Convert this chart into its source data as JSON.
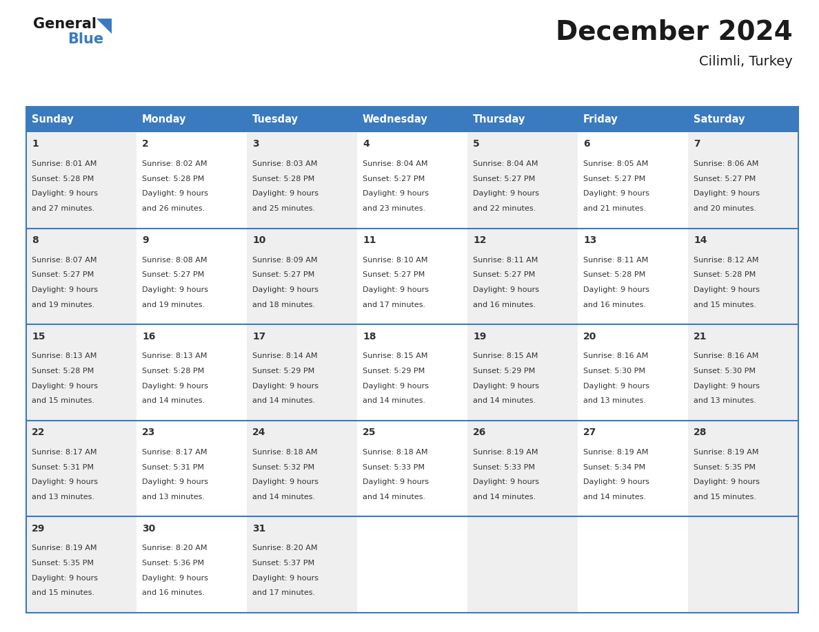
{
  "title": "December 2024",
  "subtitle": "Cilimli, Turkey",
  "header_color": "#3a7abf",
  "header_text_color": "#ffffff",
  "weekdays": [
    "Sunday",
    "Monday",
    "Tuesday",
    "Wednesday",
    "Thursday",
    "Friday",
    "Saturday"
  ],
  "bg_color_odd": "#efefef",
  "bg_color_even": "#ffffff",
  "border_color": "#3a7abf",
  "days": [
    {
      "day": 1,
      "col": 0,
      "row": 0,
      "sunrise": "8:01 AM",
      "sunset": "5:28 PM",
      "daylight": "9 hours and 27 minutes."
    },
    {
      "day": 2,
      "col": 1,
      "row": 0,
      "sunrise": "8:02 AM",
      "sunset": "5:28 PM",
      "daylight": "9 hours and 26 minutes."
    },
    {
      "day": 3,
      "col": 2,
      "row": 0,
      "sunrise": "8:03 AM",
      "sunset": "5:28 PM",
      "daylight": "9 hours and 25 minutes."
    },
    {
      "day": 4,
      "col": 3,
      "row": 0,
      "sunrise": "8:04 AM",
      "sunset": "5:27 PM",
      "daylight": "9 hours and 23 minutes."
    },
    {
      "day": 5,
      "col": 4,
      "row": 0,
      "sunrise": "8:04 AM",
      "sunset": "5:27 PM",
      "daylight": "9 hours and 22 minutes."
    },
    {
      "day": 6,
      "col": 5,
      "row": 0,
      "sunrise": "8:05 AM",
      "sunset": "5:27 PM",
      "daylight": "9 hours and 21 minutes."
    },
    {
      "day": 7,
      "col": 6,
      "row": 0,
      "sunrise": "8:06 AM",
      "sunset": "5:27 PM",
      "daylight": "9 hours and 20 minutes."
    },
    {
      "day": 8,
      "col": 0,
      "row": 1,
      "sunrise": "8:07 AM",
      "sunset": "5:27 PM",
      "daylight": "9 hours and 19 minutes."
    },
    {
      "day": 9,
      "col": 1,
      "row": 1,
      "sunrise": "8:08 AM",
      "sunset": "5:27 PM",
      "daylight": "9 hours and 19 minutes."
    },
    {
      "day": 10,
      "col": 2,
      "row": 1,
      "sunrise": "8:09 AM",
      "sunset": "5:27 PM",
      "daylight": "9 hours and 18 minutes."
    },
    {
      "day": 11,
      "col": 3,
      "row": 1,
      "sunrise": "8:10 AM",
      "sunset": "5:27 PM",
      "daylight": "9 hours and 17 minutes."
    },
    {
      "day": 12,
      "col": 4,
      "row": 1,
      "sunrise": "8:11 AM",
      "sunset": "5:27 PM",
      "daylight": "9 hours and 16 minutes."
    },
    {
      "day": 13,
      "col": 5,
      "row": 1,
      "sunrise": "8:11 AM",
      "sunset": "5:28 PM",
      "daylight": "9 hours and 16 minutes."
    },
    {
      "day": 14,
      "col": 6,
      "row": 1,
      "sunrise": "8:12 AM",
      "sunset": "5:28 PM",
      "daylight": "9 hours and 15 minutes."
    },
    {
      "day": 15,
      "col": 0,
      "row": 2,
      "sunrise": "8:13 AM",
      "sunset": "5:28 PM",
      "daylight": "9 hours and 15 minutes."
    },
    {
      "day": 16,
      "col": 1,
      "row": 2,
      "sunrise": "8:13 AM",
      "sunset": "5:28 PM",
      "daylight": "9 hours and 14 minutes."
    },
    {
      "day": 17,
      "col": 2,
      "row": 2,
      "sunrise": "8:14 AM",
      "sunset": "5:29 PM",
      "daylight": "9 hours and 14 minutes."
    },
    {
      "day": 18,
      "col": 3,
      "row": 2,
      "sunrise": "8:15 AM",
      "sunset": "5:29 PM",
      "daylight": "9 hours and 14 minutes."
    },
    {
      "day": 19,
      "col": 4,
      "row": 2,
      "sunrise": "8:15 AM",
      "sunset": "5:29 PM",
      "daylight": "9 hours and 14 minutes."
    },
    {
      "day": 20,
      "col": 5,
      "row": 2,
      "sunrise": "8:16 AM",
      "sunset": "5:30 PM",
      "daylight": "9 hours and 13 minutes."
    },
    {
      "day": 21,
      "col": 6,
      "row": 2,
      "sunrise": "8:16 AM",
      "sunset": "5:30 PM",
      "daylight": "9 hours and 13 minutes."
    },
    {
      "day": 22,
      "col": 0,
      "row": 3,
      "sunrise": "8:17 AM",
      "sunset": "5:31 PM",
      "daylight": "9 hours and 13 minutes."
    },
    {
      "day": 23,
      "col": 1,
      "row": 3,
      "sunrise": "8:17 AM",
      "sunset": "5:31 PM",
      "daylight": "9 hours and 13 minutes."
    },
    {
      "day": 24,
      "col": 2,
      "row": 3,
      "sunrise": "8:18 AM",
      "sunset": "5:32 PM",
      "daylight": "9 hours and 14 minutes."
    },
    {
      "day": 25,
      "col": 3,
      "row": 3,
      "sunrise": "8:18 AM",
      "sunset": "5:33 PM",
      "daylight": "9 hours and 14 minutes."
    },
    {
      "day": 26,
      "col": 4,
      "row": 3,
      "sunrise": "8:19 AM",
      "sunset": "5:33 PM",
      "daylight": "9 hours and 14 minutes."
    },
    {
      "day": 27,
      "col": 5,
      "row": 3,
      "sunrise": "8:19 AM",
      "sunset": "5:34 PM",
      "daylight": "9 hours and 14 minutes."
    },
    {
      "day": 28,
      "col": 6,
      "row": 3,
      "sunrise": "8:19 AM",
      "sunset": "5:35 PM",
      "daylight": "9 hours and 15 minutes."
    },
    {
      "day": 29,
      "col": 0,
      "row": 4,
      "sunrise": "8:19 AM",
      "sunset": "5:35 PM",
      "daylight": "9 hours and 15 minutes."
    },
    {
      "day": 30,
      "col": 1,
      "row": 4,
      "sunrise": "8:20 AM",
      "sunset": "5:36 PM",
      "daylight": "9 hours and 16 minutes."
    },
    {
      "day": 31,
      "col": 2,
      "row": 4,
      "sunrise": "8:20 AM",
      "sunset": "5:37 PM",
      "daylight": "9 hours and 17 minutes."
    }
  ],
  "num_rows": 5,
  "num_cols": 7,
  "logo_general_color": "#1a1a1a",
  "logo_blue_color": "#3a7abf",
  "title_color": "#1a1a1a",
  "subtitle_color": "#1a1a1a",
  "title_fontsize": 28,
  "subtitle_fontsize": 14,
  "header_fontsize": 10.5,
  "day_num_fontsize": 10,
  "cell_text_fontsize": 8,
  "logo_fontsize": 15
}
